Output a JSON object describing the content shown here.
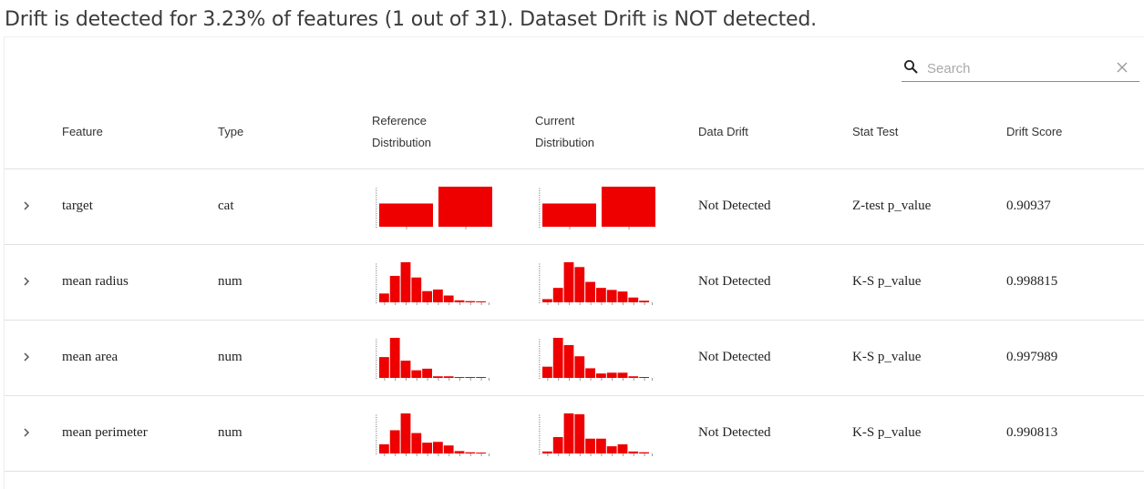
{
  "summary": "Drift is detected for 3.23% of features (1 out of 31). Dataset Drift is NOT detected.",
  "search": {
    "placeholder": "Search",
    "value": ""
  },
  "columns": {
    "feature": "Feature",
    "type": "Type",
    "reference_line1": "Reference",
    "reference_line2": "Distribution",
    "current_line1": "Current",
    "current_line2": "Distribution",
    "data_drift": "Data Drift",
    "stat_test": "Stat Test",
    "drift_score": "Drift Score"
  },
  "rows": [
    {
      "feature": "target",
      "type": "cat",
      "data_drift": "Not Detected",
      "stat_test": "Z-test p_value",
      "drift_score": "0.90937"
    },
    {
      "feature": "mean radius",
      "type": "num",
      "data_drift": "Not Detected",
      "stat_test": "K-S p_value",
      "drift_score": "0.998815"
    },
    {
      "feature": "mean area",
      "type": "num",
      "data_drift": "Not Detected",
      "stat_test": "K-S p_value",
      "drift_score": "0.997989"
    },
    {
      "feature": "mean perimeter",
      "type": "num",
      "data_drift": "Not Detected",
      "stat_test": "K-S p_value",
      "drift_score": "0.990813"
    }
  ],
  "colors": {
    "bar": "#ee0000",
    "text": "#333333",
    "divider": "#e2e2e2"
  },
  "chart_data": [
    {
      "type": "bar",
      "row": "target",
      "distribution": "reference",
      "values": [
        0.58,
        1.0
      ]
    },
    {
      "type": "bar",
      "row": "target",
      "distribution": "current",
      "values": [
        0.58,
        1.0
      ]
    },
    {
      "type": "bar",
      "row": "mean radius",
      "distribution": "reference",
      "values": [
        0.22,
        0.66,
        1.0,
        0.62,
        0.28,
        0.32,
        0.17,
        0.05,
        0.03,
        0.02
      ]
    },
    {
      "type": "bar",
      "row": "mean radius",
      "distribution": "current",
      "values": [
        0.08,
        0.36,
        1.0,
        0.88,
        0.51,
        0.36,
        0.31,
        0.27,
        0.12,
        0.04
      ]
    },
    {
      "type": "bar",
      "row": "mean area",
      "distribution": "reference",
      "values": [
        0.52,
        1.0,
        0.43,
        0.19,
        0.23,
        0.04,
        0.04,
        0.02,
        0.01,
        0.01
      ]
    },
    {
      "type": "bar",
      "row": "mean area",
      "distribution": "current",
      "values": [
        0.28,
        1.0,
        0.82,
        0.54,
        0.24,
        0.11,
        0.13,
        0.13,
        0.04,
        0.02
      ]
    },
    {
      "type": "bar",
      "row": "mean perimeter",
      "distribution": "reference",
      "values": [
        0.23,
        0.58,
        1.0,
        0.51,
        0.27,
        0.29,
        0.2,
        0.06,
        0.03,
        0.02
      ]
    },
    {
      "type": "bar",
      "row": "mean perimeter",
      "distribution": "current",
      "values": [
        0.05,
        0.41,
        1.0,
        0.98,
        0.37,
        0.37,
        0.18,
        0.23,
        0.05,
        0.03
      ]
    }
  ]
}
